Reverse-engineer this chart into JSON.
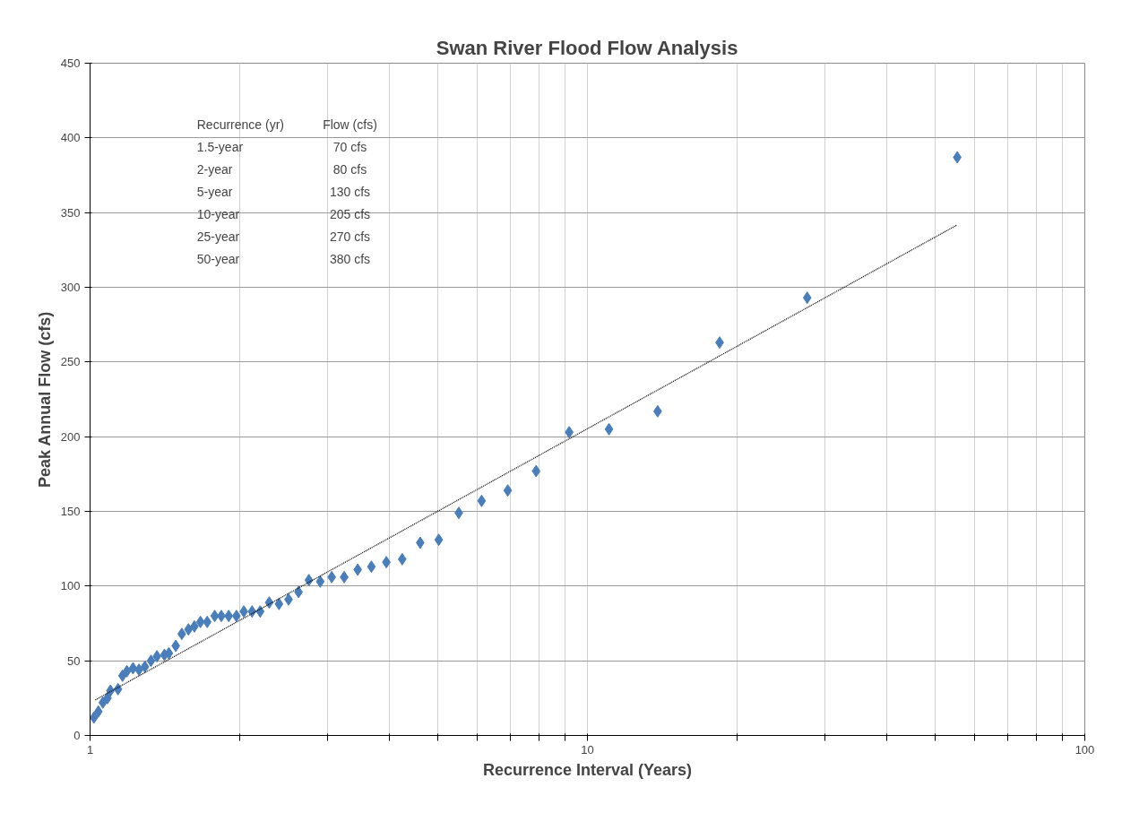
{
  "chart_data": {
    "type": "scatter",
    "title": "Swan River Flood Flow Analysis",
    "xlabel": "Recurrence Interval (Years)",
    "ylabel": "Peak Annual Flow (cfs)",
    "log": "x",
    "xlim": [
      1,
      100
    ],
    "ylim": [
      0,
      450
    ],
    "xticks": [
      1,
      {
        "value": 2,
        "label": null
      },
      {
        "value": 3,
        "label": null
      },
      {
        "value": 4,
        "label": null
      },
      {
        "value": 5,
        "label": null
      },
      {
        "value": 6,
        "label": null
      },
      {
        "value": 7,
        "label": null
      },
      {
        "value": 8,
        "label": null
      },
      {
        "value": 9,
        "label": null
      },
      10,
      {
        "value": 20,
        "label": null
      },
      {
        "value": 30,
        "label": null
      },
      {
        "value": 40,
        "label": null
      },
      {
        "value": 50,
        "label": null
      },
      {
        "value": 60,
        "label": null
      },
      {
        "value": 70,
        "label": null
      },
      {
        "value": 80,
        "label": null
      },
      {
        "value": 90,
        "label": null
      },
      100
    ],
    "yticks": [
      0,
      50,
      100,
      150,
      200,
      250,
      300,
      350,
      400,
      450
    ],
    "grid": true,
    "series": [
      {
        "color": "#4a7ebb",
        "marker": "diamond",
        "x": [
          1.018,
          1.039,
          1.061,
          1.084,
          1.099,
          1.138,
          1.162,
          1.186,
          1.22,
          1.254,
          1.289,
          1.326,
          1.363,
          1.411,
          1.44,
          1.487,
          1.529,
          1.577,
          1.621,
          1.667,
          1.72,
          1.781,
          1.836,
          1.9,
          1.969,
          2.038,
          2.117,
          2.198,
          2.292,
          2.398,
          2.507,
          2.625,
          2.754,
          2.903,
          3.061,
          3.243,
          3.452,
          3.678,
          3.942,
          4.242,
          4.611,
          5.024,
          5.513,
          6.127,
          6.915,
          7.886,
          9.19,
          11.05,
          13.84,
          18.44,
          27.66,
          55.4
        ],
        "values": [
          12,
          16,
          22,
          25,
          30,
          31,
          40,
          43,
          45,
          44,
          46,
          50,
          53,
          54,
          55,
          60,
          68,
          71,
          73,
          76,
          76,
          80,
          80,
          80,
          80,
          83,
          83,
          83,
          89,
          88,
          91,
          96,
          104,
          103,
          106,
          106,
          111,
          113,
          116,
          118,
          129,
          131,
          149,
          157,
          164,
          177,
          203,
          205,
          217,
          263,
          293,
          387
        ]
      },
      {
        "type": "line",
        "color": "#000000",
        "line_style": "dotted",
        "x": [
          1.025,
          55.3
        ],
        "values": [
          23.8,
          341.6
        ]
      }
    ],
    "annotations": [
      "Recurrence (yr)",
      "Flow (cfs)",
      "1.5-year",
      "70 cfs",
      "2-year",
      "80 cfs",
      "5-year",
      "130 cfs",
      "10-year",
      "205 cfs",
      "25-year",
      "270 cfs",
      "50-year",
      "380 cfs"
    ]
  }
}
